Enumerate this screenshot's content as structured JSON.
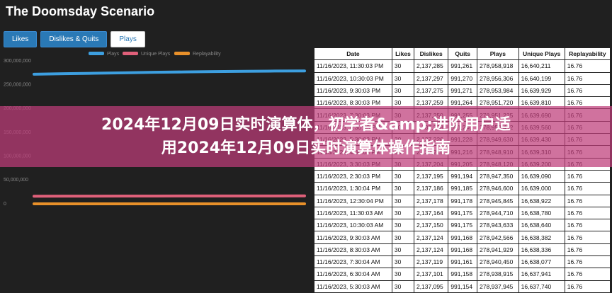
{
  "title": "The Doomsday Scenario",
  "tabs": [
    "Likes",
    "Dislikes & Quits",
    "Plays"
  ],
  "chart_data": {
    "type": "line",
    "categories": [
      null,
      null,
      null,
      null,
      null,
      null,
      null,
      null,
      null,
      null
    ],
    "series": [
      {
        "name": "Plays",
        "color": "#3d9fe0",
        "values": [
          272000000,
          273000000,
          274000000,
          275000000,
          276000000,
          276800000,
          277500000,
          278100000,
          278600000,
          278900000
        ]
      },
      {
        "name": "Unique Plays",
        "color": "#e0607a",
        "values": [
          16000000,
          16100000,
          16200000,
          16300000,
          16400000,
          16450000,
          16500000,
          16550000,
          16600000,
          16640000
        ]
      },
      {
        "name": "Replayability",
        "color": "#e8902a",
        "values": [
          16.76,
          16.76,
          16.76,
          16.76,
          16.76,
          16.76,
          16.76,
          16.76,
          16.76,
          16.76
        ]
      }
    ],
    "ylim": [
      0,
      300000000
    ],
    "yticks": [
      {
        "value": 0,
        "label": "0"
      },
      {
        "value": 50000000,
        "label": "50,000,000"
      },
      {
        "value": 100000000,
        "label": "100,000,000"
      },
      {
        "value": 150000000,
        "label": "150,000,000"
      },
      {
        "value": 200000000,
        "label": "200,000,000"
      },
      {
        "value": 250000000,
        "label": "250,000,000"
      },
      {
        "value": 300000000,
        "label": "300,000,000"
      }
    ]
  },
  "table": {
    "columns": [
      "Date",
      "Likes",
      "Dislikes",
      "Quits",
      "Plays",
      "Unique Plays",
      "Replayability"
    ],
    "rows": [
      [
        "11/16/2023, 11:30:03 PM",
        "30",
        "2,137,285",
        "991,261",
        "278,958,918",
        "16,640,211",
        "16.76"
      ],
      [
        "11/16/2023, 10:30:03 PM",
        "30",
        "2,137,297",
        "991,270",
        "278,956,306",
        "16,640,199",
        "16.76"
      ],
      [
        "11/16/2023, 9:30:03 PM",
        "30",
        "2,137,275",
        "991,271",
        "278,953,984",
        "16,639,929",
        "16.76"
      ],
      [
        "11/16/2023, 8:30:03 PM",
        "30",
        "2,137,259",
        "991,264",
        "278,951,720",
        "16,639,810",
        "16.76"
      ],
      [
        "11/16/2023, 7:30:03 PM",
        "30",
        "2,137,250",
        "991,255",
        "278,951,225",
        "16,639,690",
        "16.76"
      ],
      [
        "11/16/2023, 6:30:03 PM",
        "30",
        "2,137,238",
        "991,240",
        "278,950,412",
        "16,639,560",
        "16.76"
      ],
      [
        "11/16/2023, 5:30:03 PM",
        "30",
        "2,137,226",
        "991,228",
        "278,949,630",
        "16,639,430",
        "16.76"
      ],
      [
        "11/16/2023, 4:30:03 PM",
        "30",
        "2,137,215",
        "991,216",
        "278,948,910",
        "16,639,310",
        "16.76"
      ],
      [
        "11/16/2023, 3:30:03 PM",
        "30",
        "2,137,204",
        "991,205",
        "278,948,120",
        "16,639,200",
        "16.76"
      ],
      [
        "11/16/2023, 2:30:03 PM",
        "30",
        "2,137,195",
        "991,194",
        "278,947,350",
        "16,639,090",
        "16.76"
      ],
      [
        "11/16/2023, 1:30:04 PM",
        "30",
        "2,137,186",
        "991,185",
        "278,946,600",
        "16,639,000",
        "16.76"
      ],
      [
        "11/16/2023, 12:30:04 PM",
        "30",
        "2,137,178",
        "991,178",
        "278,945,845",
        "16,638,922",
        "16.76"
      ],
      [
        "11/16/2023, 11:30:03 AM",
        "30",
        "2,137,164",
        "991,175",
        "278,944,710",
        "16,638,780",
        "16.76"
      ],
      [
        "11/16/2023, 10:30:03 AM",
        "30",
        "2,137,150",
        "991,175",
        "278,943,633",
        "16,638,640",
        "16.76"
      ],
      [
        "11/16/2023, 9:30:03 AM",
        "30",
        "2,137,124",
        "991,168",
        "278,942,566",
        "16,638,382",
        "16.76"
      ],
      [
        "11/16/2023, 8:30:03 AM",
        "30",
        "2,137,124",
        "991,168",
        "278,941,929",
        "16,638,336",
        "16.76"
      ],
      [
        "11/16/2023, 7:30:04 AM",
        "30",
        "2,137,119",
        "991,161",
        "278,940,450",
        "16,638,077",
        "16.76"
      ],
      [
        "11/16/2023, 6:30:04 AM",
        "30",
        "2,137,101",
        "991,158",
        "278,938,915",
        "16,637,941",
        "16.76"
      ],
      [
        "11/16/2023, 5:30:03 AM",
        "30",
        "2,137,095",
        "991,154",
        "278,937,945",
        "16,637,740",
        "16.76"
      ]
    ]
  },
  "overlay": [
    "2024年12月09日实时演算体，初学者&amp;进阶用户适",
    "用2024年12月09日实时演算体操作指南"
  ]
}
